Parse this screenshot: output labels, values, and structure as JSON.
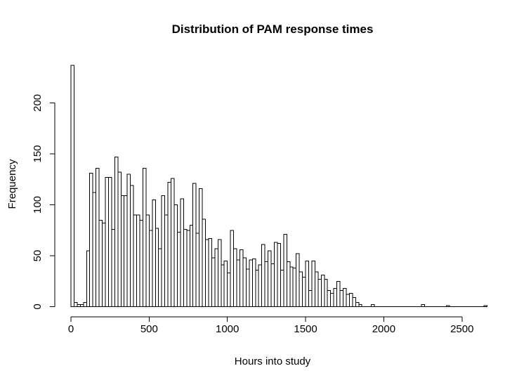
{
  "chart_data": {
    "type": "bar",
    "subtype": "histogram",
    "title": "Distribution of PAM response times",
    "xlabel": "Hours into study",
    "ylabel": "Frequency",
    "bin_start_hours": 0,
    "bin_width_hours": 20,
    "frequencies": [
      237,
      4,
      2,
      2,
      4,
      55,
      131,
      112,
      136,
      85,
      82,
      127,
      127,
      76,
      147,
      132,
      109,
      109,
      130,
      119,
      90,
      90,
      85,
      136,
      90,
      75,
      105,
      77,
      57,
      109,
      90,
      122,
      126,
      100,
      73,
      106,
      76,
      75,
      80,
      121,
      72,
      116,
      86,
      66,
      67,
      48,
      57,
      66,
      41,
      45,
      33,
      75,
      57,
      46,
      56,
      48,
      37,
      46,
      47,
      36,
      41,
      61,
      44,
      55,
      42,
      63,
      62,
      36,
      71,
      44,
      39,
      38,
      52,
      34,
      29,
      45,
      16,
      45,
      34,
      27,
      31,
      27,
      16,
      13,
      18,
      25,
      16,
      18,
      12,
      13,
      9,
      4,
      2,
      0,
      0,
      0,
      2,
      0,
      0,
      0,
      0,
      0,
      0,
      0,
      0,
      0,
      0,
      0,
      0,
      0,
      0,
      0,
      2,
      0,
      0,
      0,
      0,
      0,
      0,
      0,
      1,
      0,
      0,
      0,
      0,
      0,
      0,
      0,
      0,
      0,
      0,
      0,
      1
    ],
    "x_ticks": [
      0,
      500,
      1000,
      1500,
      2000,
      2500
    ],
    "y_ticks": [
      0,
      50,
      100,
      150,
      200
    ],
    "xlim": [
      0,
      2660
    ],
    "ylim": [
      0,
      237
    ],
    "grid": false,
    "legend": null,
    "colors": {
      "bar_fill": "#ffffff",
      "bar_stroke": "#000000",
      "axis": "#000000",
      "text": "#000000",
      "background": "#ffffff"
    }
  }
}
